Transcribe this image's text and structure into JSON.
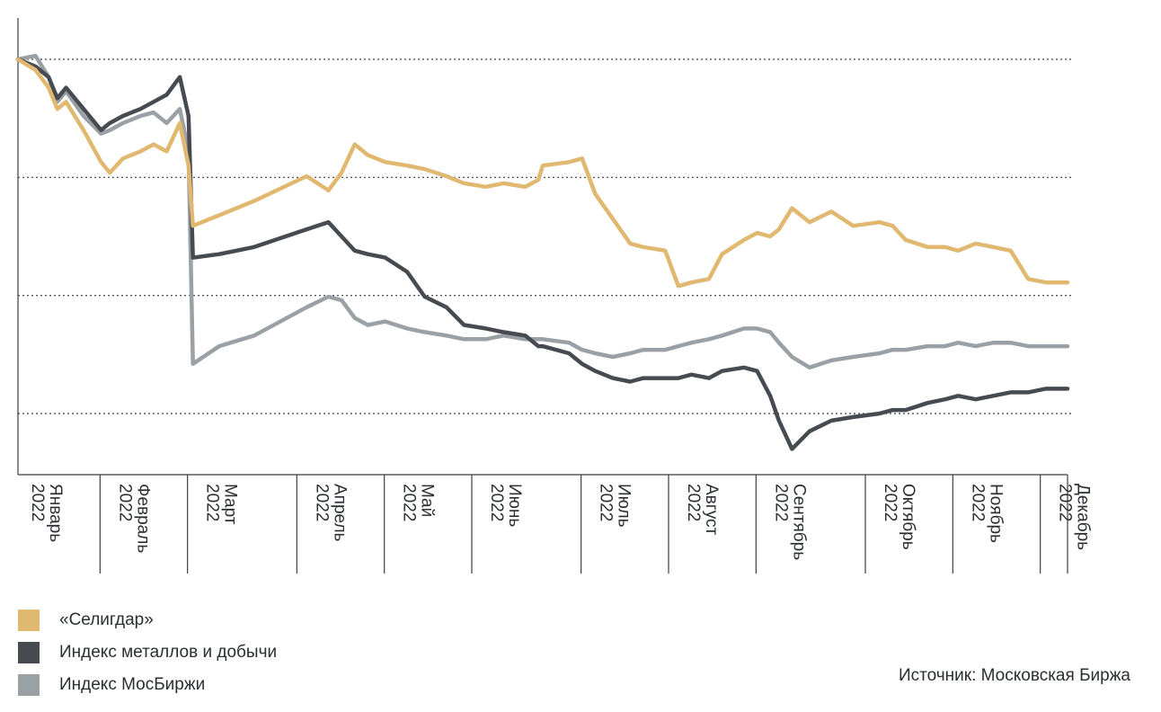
{
  "chart_data": {
    "type": "line",
    "title": "",
    "xlabel": "",
    "ylabel": "",
    "y_tick_labels": "none",
    "grid": "horizontal-dotted",
    "legend_position": "bottom-left",
    "year": "2022",
    "months": [
      "Январь",
      "Февраль",
      "Март",
      "Апрель",
      "Май",
      "Июнь",
      "Июль",
      "Август",
      "Сентябрь",
      "Октябрь",
      "Ноябрь",
      "Декабрь"
    ],
    "x_range": [
      0,
      12
    ],
    "series": [
      {
        "name": "«Селигдар»",
        "color": "#E0B870",
        "points": [
          [
            0.0,
            100
          ],
          [
            0.2,
            97
          ],
          [
            0.35,
            92
          ],
          [
            0.45,
            86
          ],
          [
            0.55,
            88
          ],
          [
            0.75,
            80
          ],
          [
            0.95,
            71
          ],
          [
            1.05,
            68
          ],
          [
            1.2,
            72
          ],
          [
            1.4,
            74
          ],
          [
            1.55,
            76
          ],
          [
            1.7,
            74
          ],
          [
            1.85,
            82
          ],
          [
            1.95,
            70
          ],
          [
            2.0,
            53
          ],
          [
            2.3,
            56
          ],
          [
            2.7,
            60
          ],
          [
            3.3,
            67
          ],
          [
            3.55,
            63
          ],
          [
            3.7,
            68
          ],
          [
            3.85,
            76
          ],
          [
            4.0,
            73
          ],
          [
            4.2,
            71
          ],
          [
            4.45,
            70
          ],
          [
            4.65,
            69
          ],
          [
            4.9,
            67
          ],
          [
            5.1,
            65
          ],
          [
            5.35,
            64
          ],
          [
            5.55,
            65
          ],
          [
            5.8,
            64
          ],
          [
            5.95,
            66
          ],
          [
            6.0,
            70
          ],
          [
            6.3,
            71
          ],
          [
            6.45,
            72
          ],
          [
            6.6,
            62
          ],
          [
            6.8,
            55
          ],
          [
            7.0,
            48
          ],
          [
            7.15,
            47
          ],
          [
            7.4,
            46
          ],
          [
            7.55,
            36
          ],
          [
            7.7,
            37
          ],
          [
            7.9,
            38
          ],
          [
            8.05,
            45
          ],
          [
            8.3,
            49
          ],
          [
            8.45,
            51
          ],
          [
            8.6,
            50
          ],
          [
            8.7,
            52
          ],
          [
            8.85,
            58
          ],
          [
            9.05,
            54
          ],
          [
            9.3,
            57
          ],
          [
            9.55,
            53
          ],
          [
            9.85,
            54
          ],
          [
            10.0,
            53
          ],
          [
            10.15,
            49
          ],
          [
            10.4,
            47
          ],
          [
            10.6,
            47
          ],
          [
            10.75,
            46
          ],
          [
            10.95,
            48
          ],
          [
            11.15,
            47
          ],
          [
            11.35,
            46
          ],
          [
            11.55,
            38
          ],
          [
            11.75,
            37
          ],
          [
            12.0,
            37
          ]
        ]
      },
      {
        "name": "Индекс металлов и добычи",
        "color": "#454B50",
        "points": [
          [
            0.0,
            100
          ],
          [
            0.2,
            98
          ],
          [
            0.35,
            95
          ],
          [
            0.45,
            89
          ],
          [
            0.55,
            92
          ],
          [
            0.75,
            86
          ],
          [
            0.95,
            80
          ],
          [
            1.05,
            82
          ],
          [
            1.2,
            84
          ],
          [
            1.4,
            86
          ],
          [
            1.55,
            88
          ],
          [
            1.7,
            90
          ],
          [
            1.85,
            95
          ],
          [
            1.95,
            84
          ],
          [
            2.0,
            44
          ],
          [
            2.3,
            45
          ],
          [
            2.7,
            47
          ],
          [
            3.3,
            52
          ],
          [
            3.55,
            54
          ],
          [
            3.7,
            50
          ],
          [
            3.85,
            46
          ],
          [
            4.0,
            45
          ],
          [
            4.2,
            44
          ],
          [
            4.45,
            40
          ],
          [
            4.65,
            33
          ],
          [
            4.9,
            30
          ],
          [
            5.1,
            25
          ],
          [
            5.35,
            24
          ],
          [
            5.55,
            23
          ],
          [
            5.8,
            22
          ],
          [
            5.95,
            19
          ],
          [
            6.0,
            19
          ],
          [
            6.3,
            17
          ],
          [
            6.45,
            14
          ],
          [
            6.6,
            12
          ],
          [
            6.8,
            10
          ],
          [
            7.0,
            9
          ],
          [
            7.15,
            10
          ],
          [
            7.4,
            10
          ],
          [
            7.55,
            10
          ],
          [
            7.7,
            11
          ],
          [
            7.9,
            10
          ],
          [
            8.05,
            12
          ],
          [
            8.3,
            13
          ],
          [
            8.45,
            12
          ],
          [
            8.6,
            5
          ],
          [
            8.7,
            -2
          ],
          [
            8.85,
            -10
          ],
          [
            9.05,
            -5
          ],
          [
            9.3,
            -2
          ],
          [
            9.55,
            -1
          ],
          [
            9.85,
            0
          ],
          [
            10.0,
            1
          ],
          [
            10.15,
            1
          ],
          [
            10.4,
            3
          ],
          [
            10.6,
            4
          ],
          [
            10.75,
            5
          ],
          [
            10.95,
            4
          ],
          [
            11.15,
            5
          ],
          [
            11.35,
            6
          ],
          [
            11.55,
            6
          ],
          [
            11.75,
            7
          ],
          [
            12.0,
            7
          ]
        ]
      },
      {
        "name": "Индекс МосБиржи",
        "color": "#9AA1A6",
        "points": [
          [
            0.0,
            100
          ],
          [
            0.2,
            101
          ],
          [
            0.35,
            95
          ],
          [
            0.45,
            88
          ],
          [
            0.55,
            91
          ],
          [
            0.75,
            84
          ],
          [
            0.95,
            79
          ],
          [
            1.05,
            80
          ],
          [
            1.2,
            82
          ],
          [
            1.4,
            84
          ],
          [
            1.55,
            85
          ],
          [
            1.7,
            82
          ],
          [
            1.85,
            86
          ],
          [
            1.95,
            74
          ],
          [
            2.0,
            14
          ],
          [
            2.3,
            19
          ],
          [
            2.7,
            22
          ],
          [
            3.3,
            30
          ],
          [
            3.55,
            33
          ],
          [
            3.7,
            32
          ],
          [
            3.85,
            27
          ],
          [
            4.0,
            25
          ],
          [
            4.2,
            26
          ],
          [
            4.45,
            24
          ],
          [
            4.65,
            23
          ],
          [
            4.9,
            22
          ],
          [
            5.1,
            21
          ],
          [
            5.35,
            21
          ],
          [
            5.55,
            22
          ],
          [
            5.8,
            21
          ],
          [
            5.95,
            21
          ],
          [
            6.0,
            21
          ],
          [
            6.3,
            20
          ],
          [
            6.45,
            18
          ],
          [
            6.6,
            17
          ],
          [
            6.8,
            16
          ],
          [
            7.0,
            17
          ],
          [
            7.15,
            18
          ],
          [
            7.4,
            18
          ],
          [
            7.55,
            19
          ],
          [
            7.7,
            20
          ],
          [
            7.9,
            21
          ],
          [
            8.05,
            22
          ],
          [
            8.3,
            24
          ],
          [
            8.45,
            24
          ],
          [
            8.6,
            23
          ],
          [
            8.7,
            20
          ],
          [
            8.85,
            16
          ],
          [
            9.05,
            13
          ],
          [
            9.3,
            15
          ],
          [
            9.55,
            16
          ],
          [
            9.85,
            17
          ],
          [
            10.0,
            18
          ],
          [
            10.15,
            18
          ],
          [
            10.4,
            19
          ],
          [
            10.6,
            19
          ],
          [
            10.75,
            20
          ],
          [
            10.95,
            19
          ],
          [
            11.15,
            20
          ],
          [
            11.35,
            20
          ],
          [
            11.55,
            19
          ],
          [
            11.75,
            19
          ],
          [
            12.0,
            19
          ]
        ]
      }
    ],
    "source": "Источник: Московская Биржа"
  }
}
